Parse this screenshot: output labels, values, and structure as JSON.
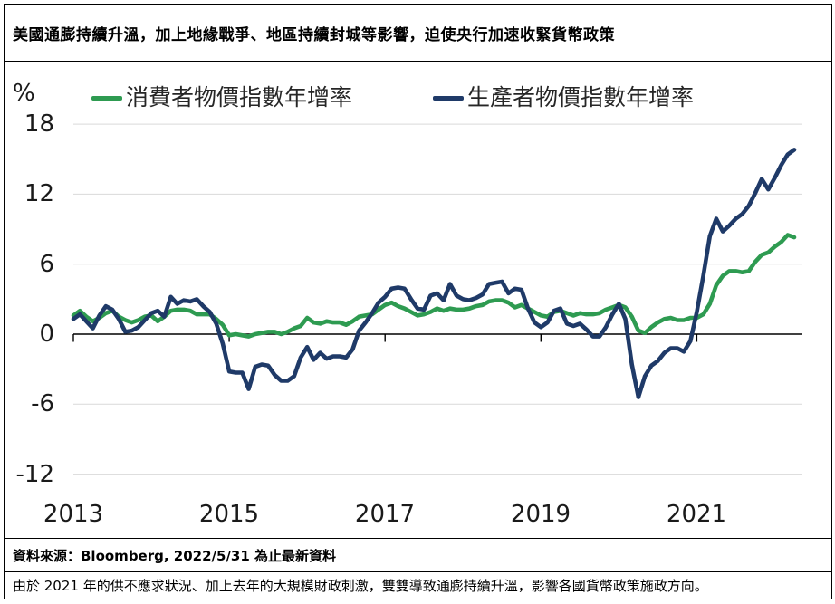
{
  "title": "美國通膨持續升溫，加上地緣戰爭、地區持續封城等影響，迫使央行加速收緊貨幣政策",
  "y_axis": {
    "unit": "%"
  },
  "footer": {
    "source": "資料來源：Bloomberg, 2022/5/31 為止最新資料",
    "comment": "由於 2021 年的供不應求狀況、加上去年的大規模財政刺激，雙雙導致通膨持續升溫，影響各國貨幣政策施政方向。"
  },
  "colors": {
    "cpi_green": "#2E9B51",
    "ppi_navy": "#1F3A68",
    "gridline": "#D9D9D9",
    "axis": "#000000"
  },
  "chart_data": {
    "type": "line",
    "title": "美國通膨持續升溫，加上地緣戰爭、地區持續封城等影響，迫使央行加速收緊貨幣政策",
    "unit": "%",
    "x_frequency": "monthly",
    "x_start": "2013-01",
    "x_end": "2022-04",
    "x_tick_labels": [
      "2013",
      "2015",
      "2017",
      "2019",
      "2021"
    ],
    "x_tick_month_indices": [
      0,
      24,
      48,
      72,
      96
    ],
    "y_ticks": [
      18,
      12,
      6,
      0,
      -6,
      -12
    ],
    "ylim": [
      -13,
      19
    ],
    "grid": "horizontal",
    "legend_position": "top",
    "series": [
      {
        "name": "消費者物價指數年增率",
        "color": "#2E9B51",
        "values": [
          1.6,
          2.0,
          1.5,
          1.1,
          1.4,
          1.8,
          2.0,
          1.5,
          1.2,
          1.0,
          1.2,
          1.5,
          1.6,
          1.1,
          1.5,
          2.0,
          2.1,
          2.1,
          2.0,
          1.7,
          1.7,
          1.7,
          1.3,
          0.8,
          -0.1,
          0.0,
          -0.1,
          -0.2,
          0.0,
          0.1,
          0.2,
          0.2,
          0.0,
          0.2,
          0.5,
          0.7,
          1.4,
          1.0,
          0.9,
          1.1,
          1.0,
          1.0,
          0.8,
          1.1,
          1.5,
          1.6,
          1.7,
          2.1,
          2.5,
          2.7,
          2.4,
          2.2,
          1.9,
          1.6,
          1.7,
          1.9,
          2.2,
          2.0,
          2.2,
          2.1,
          2.1,
          2.2,
          2.4,
          2.5,
          2.8,
          2.9,
          2.9,
          2.7,
          2.3,
          2.5,
          2.2,
          1.9,
          1.6,
          1.5,
          1.9,
          2.0,
          1.8,
          1.6,
          1.8,
          1.7,
          1.7,
          1.8,
          2.1,
          2.3,
          2.5,
          2.3,
          1.5,
          0.3,
          0.1,
          0.6,
          1.0,
          1.3,
          1.4,
          1.2,
          1.2,
          1.4,
          1.4,
          1.7,
          2.6,
          4.2,
          5.0,
          5.4,
          5.4,
          5.3,
          5.4,
          6.2,
          6.8,
          7.0,
          7.5,
          7.9,
          8.5,
          8.3
        ]
      },
      {
        "name": "生產者物價指數年增率",
        "color": "#1F3A68",
        "values": [
          1.3,
          1.7,
          1.1,
          0.5,
          1.6,
          2.4,
          2.1,
          1.3,
          0.2,
          0.3,
          0.6,
          1.2,
          1.8,
          2.0,
          1.5,
          3.2,
          2.6,
          2.9,
          2.8,
          3.0,
          2.4,
          1.9,
          0.9,
          -0.8,
          -3.2,
          -3.3,
          -3.3,
          -4.7,
          -2.8,
          -2.6,
          -2.7,
          -3.5,
          -4.0,
          -4.0,
          -3.6,
          -2.0,
          -1.1,
          -2.2,
          -1.6,
          -2.1,
          -1.9,
          -1.9,
          -2.0,
          -1.3,
          0.3,
          1.0,
          1.8,
          2.7,
          3.2,
          3.9,
          4.0,
          3.9,
          3.0,
          2.2,
          2.1,
          3.3,
          3.5,
          2.9,
          4.3,
          3.3,
          3.0,
          2.9,
          3.1,
          3.4,
          4.3,
          4.4,
          4.5,
          3.5,
          3.9,
          3.8,
          2.2,
          1.0,
          0.6,
          1.0,
          2.0,
          2.2,
          0.9,
          0.7,
          0.9,
          0.4,
          -0.2,
          -0.2,
          0.6,
          1.7,
          2.6,
          1.3,
          -2.6,
          -5.4,
          -3.6,
          -2.7,
          -2.3,
          -1.6,
          -1.2,
          -1.2,
          -1.5,
          -0.6,
          1.9,
          5.0,
          8.4,
          9.9,
          8.8,
          9.3,
          9.9,
          10.3,
          11.0,
          12.1,
          13.3,
          12.4,
          13.4,
          14.5,
          15.4,
          15.8
        ]
      }
    ]
  }
}
